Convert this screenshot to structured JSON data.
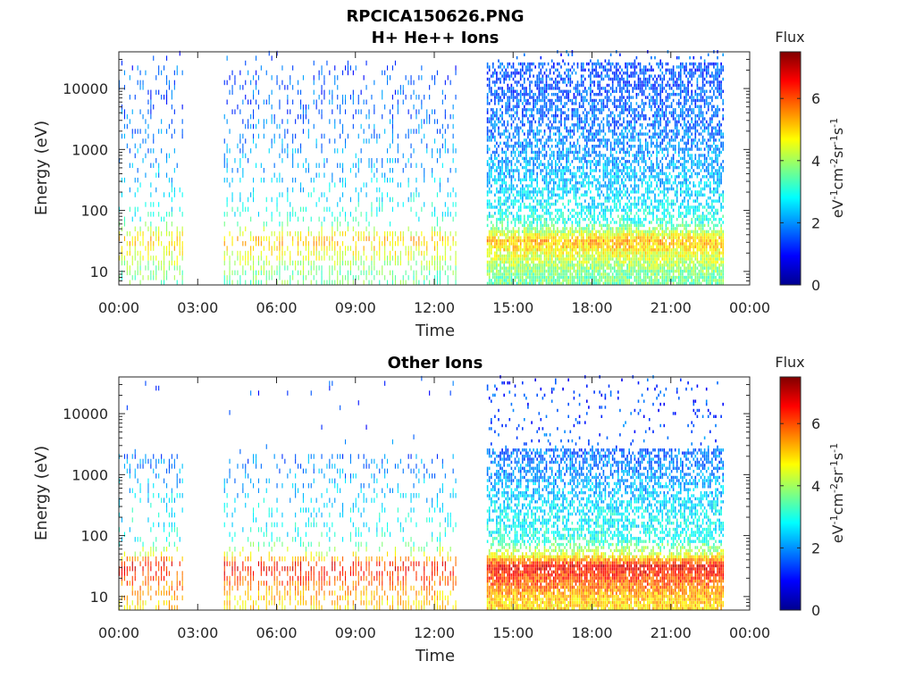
{
  "figure": {
    "filename_title": "RPCICA150626.PNG"
  },
  "colormap": [
    "#00008f",
    "#0000ff",
    "#0080ff",
    "#00ffff",
    "#80ff80",
    "#ffff00",
    "#ff8000",
    "#ff0000",
    "#800000"
  ],
  "chart_data": [
    {
      "type": "heatmap",
      "title": "H+ He++ Ions",
      "xlabel": "Time",
      "ylabel": "Energy (eV)",
      "x_ticks": [
        "00:00",
        "03:00",
        "06:00",
        "09:00",
        "12:00",
        "15:00",
        "18:00",
        "21:00",
        "00:00"
      ],
      "xlim_hours": [
        0,
        24
      ],
      "y_scale": "log",
      "y_ticks": [
        "10",
        "100",
        "1000",
        "10000"
      ],
      "ylim": [
        6,
        40000
      ],
      "colorbar": {
        "title": "Flux",
        "label": "eV-1cm-2sr-1s-1",
        "ticks": [
          "0",
          "2",
          "4",
          "6"
        ],
        "range": [
          0,
          7.5
        ]
      },
      "data_intervals_hours": [
        [
          0.0,
          2.5
        ],
        [
          4.0,
          12.8
        ],
        [
          14.0,
          23.0
        ]
      ],
      "profile": [
        {
          "energy_eV": 8,
          "flux": 3.6
        },
        {
          "energy_eV": 15,
          "flux": 4.3
        },
        {
          "energy_eV": 30,
          "flux": 5.2
        },
        {
          "energy_eV": 60,
          "flux": 3.1
        },
        {
          "energy_eV": 150,
          "flux": 2.6
        },
        {
          "energy_eV": 500,
          "flux": 2.2
        },
        {
          "energy_eV": 2000,
          "flux": 1.8
        },
        {
          "energy_eV": 8000,
          "flux": 1.6
        },
        {
          "energy_eV": 30000,
          "flux": 1.5
        }
      ],
      "profile_cutoff_eV": 20000,
      "dense_period_hours": [
        14.0,
        23.0
      ]
    },
    {
      "type": "heatmap",
      "title": "Other Ions",
      "xlabel": "Time",
      "ylabel": "Energy (eV)",
      "x_ticks": [
        "00:00",
        "03:00",
        "06:00",
        "09:00",
        "12:00",
        "15:00",
        "18:00",
        "21:00",
        "00:00"
      ],
      "xlim_hours": [
        0,
        24
      ],
      "y_scale": "log",
      "y_ticks": [
        "10",
        "100",
        "1000",
        "10000"
      ],
      "ylim": [
        6,
        40000
      ],
      "colorbar": {
        "title": "Flux",
        "label": "eV-1cm-2sr-1s-1",
        "ticks": [
          "0",
          "2",
          "4",
          "6"
        ],
        "range": [
          0,
          7.5
        ]
      },
      "data_intervals_hours": [
        [
          0.0,
          2.5
        ],
        [
          4.0,
          12.8
        ],
        [
          14.0,
          23.0
        ]
      ],
      "profile": [
        {
          "energy_eV": 8,
          "flux": 5.0
        },
        {
          "energy_eV": 15,
          "flux": 5.8
        },
        {
          "energy_eV": 30,
          "flux": 6.6
        },
        {
          "energy_eV": 45,
          "flux": 4.5
        },
        {
          "energy_eV": 80,
          "flux": 3.0
        },
        {
          "energy_eV": 300,
          "flux": 2.6
        },
        {
          "energy_eV": 1000,
          "flux": 2.0
        },
        {
          "energy_eV": 5000,
          "flux": 1.5
        },
        {
          "energy_eV": 30000,
          "flux": 1.3
        }
      ],
      "profile_cutoff_eV": 2000,
      "dense_period_hours": [
        14.0,
        23.0
      ]
    }
  ]
}
